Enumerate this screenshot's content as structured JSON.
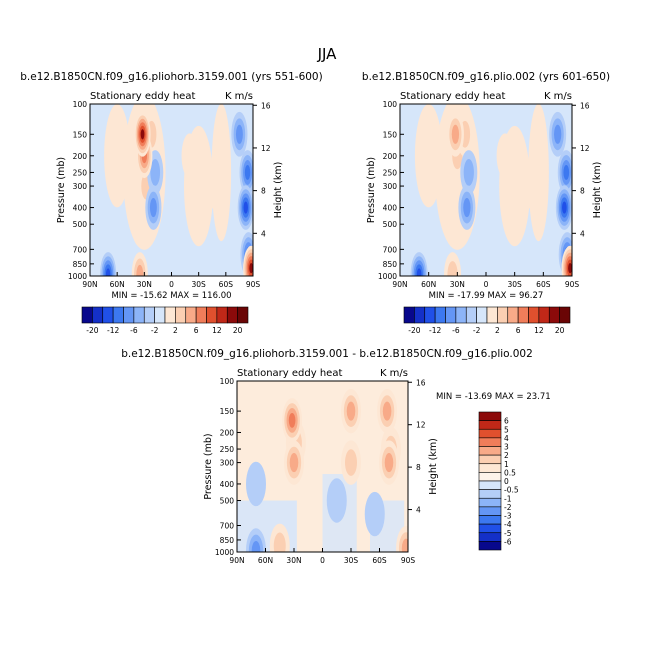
{
  "figure": {
    "title": "JJA"
  },
  "colors": {
    "c_-20": "#08088c",
    "c_-16": "#1430c8",
    "c_-12": "#2050e8",
    "c_-8": "#3c78f0",
    "c_-6": "#6496f5",
    "c_-4": "#8cb4f8",
    "c_-2": "#b4cef8",
    "c_0": "#d6e6fa",
    "c_2": "#fde7d4",
    "c_4": "#fbcfb2",
    "c_6": "#f8aa88",
    "c_8": "#f07d5a",
    "c_12": "#e0502e",
    "c_16": "#c02818",
    "c_20": "#8c0a0a"
  },
  "chart_data": [
    {
      "type": "contour",
      "header": "b.e12.B1850CN.f09_g16.pliohorb.3159.001 (yrs 551-600)",
      "subtitle_left": "Stationary eddy heat",
      "subtitle_right": "K m/s",
      "xlabel": "",
      "ylabel": "Pressure (mb)",
      "ylabel_right": "Height (km)",
      "x_ticks": [
        "90N",
        "60N",
        "30N",
        "0",
        "30S",
        "60S",
        "90S"
      ],
      "y_ticks": [
        "100",
        "150",
        "200",
        "250",
        "300",
        "400",
        "500",
        "700",
        "850",
        "1000"
      ],
      "y_ticks_right": [
        "16",
        "12",
        "8",
        "4"
      ],
      "stats": "MIN = -15.62   MAX = 116.00",
      "features": [
        {
          "lat": 32,
          "p": 150,
          "v": 20
        },
        {
          "lat": 30,
          "p": 200,
          "v": 8
        },
        {
          "lat": 28,
          "p": 300,
          "v": 4
        },
        {
          "lat": 22,
          "p": 150,
          "v": 4
        },
        {
          "lat": 35,
          "p": 500,
          "v": 2
        },
        {
          "lat": 20,
          "p": 400,
          "v": -6
        },
        {
          "lat": 18,
          "p": 250,
          "v": -4
        },
        {
          "lat": -75,
          "p": 150,
          "v": -6
        },
        {
          "lat": -82,
          "p": 400,
          "v": -12
        },
        {
          "lat": -84,
          "p": 250,
          "v": -8
        },
        {
          "lat": -88,
          "p": 900,
          "v": 20
        },
        {
          "lat": -85,
          "p": 750,
          "v": -8
        },
        {
          "lat": 70,
          "p": 980,
          "v": -12
        },
        {
          "lat": 35,
          "p": 980,
          "v": 6
        },
        {
          "lat": -20,
          "p": 200,
          "v": 2
        },
        {
          "lat": -45,
          "p": 300,
          "v": 2
        }
      ]
    },
    {
      "type": "contour",
      "header": "b.e12.B1850CN.f09_g16.plio.002 (yrs 601-650)",
      "subtitle_left": "Stationary eddy heat",
      "subtitle_right": "K m/s",
      "xlabel": "",
      "ylabel": "Pressure (mb)",
      "ylabel_right": "Height (km)",
      "x_ticks": [
        "90N",
        "60N",
        "30N",
        "0",
        "30S",
        "60S",
        "90S"
      ],
      "y_ticks": [
        "100",
        "150",
        "200",
        "250",
        "300",
        "400",
        "500",
        "700",
        "850",
        "1000"
      ],
      "y_ticks_right": [
        "16",
        "12",
        "8",
        "4"
      ],
      "stats": "MIN = -17.99   MAX =  96.27",
      "features": [
        {
          "lat": 32,
          "p": 150,
          "v": 6
        },
        {
          "lat": 30,
          "p": 200,
          "v": 4
        },
        {
          "lat": 22,
          "p": 150,
          "v": 4
        },
        {
          "lat": 20,
          "p": 400,
          "v": -6
        },
        {
          "lat": 18,
          "p": 250,
          "v": -4
        },
        {
          "lat": -75,
          "p": 150,
          "v": -6
        },
        {
          "lat": -82,
          "p": 400,
          "v": -12
        },
        {
          "lat": -84,
          "p": 250,
          "v": -8
        },
        {
          "lat": -88,
          "p": 900,
          "v": 20
        },
        {
          "lat": -85,
          "p": 750,
          "v": -8
        },
        {
          "lat": 70,
          "p": 980,
          "v": -12
        },
        {
          "lat": 35,
          "p": 980,
          "v": 4
        },
        {
          "lat": -20,
          "p": 200,
          "v": 2
        },
        {
          "lat": -45,
          "p": 300,
          "v": 2
        }
      ]
    },
    {
      "type": "contour",
      "header": "b.e12.B1850CN.f09_g16.pliohorb.3159.001 - b.e12.B1850CN.f09_g16.plio.002",
      "subtitle_left": "Stationary eddy heat",
      "subtitle_right": "K m/s",
      "xlabel": "",
      "ylabel": "Pressure (mb)",
      "ylabel_right": "Height (km)",
      "x_ticks": [
        "90N",
        "60N",
        "30N",
        "0",
        "30S",
        "60S",
        "90S"
      ],
      "y_ticks": [
        "100",
        "150",
        "200",
        "250",
        "300",
        "400",
        "500",
        "700",
        "850",
        "1000"
      ],
      "y_ticks_right": [
        "16",
        "12",
        "8",
        "4"
      ],
      "stats": "MIN = -13.69   MAX =  23.71",
      "features": [
        {
          "lat": 32,
          "p": 170,
          "v": 3
        },
        {
          "lat": 30,
          "p": 300,
          "v": 2
        },
        {
          "lat": 28,
          "p": 230,
          "v": 1
        },
        {
          "lat": -30,
          "p": 150,
          "v": 2
        },
        {
          "lat": -30,
          "p": 300,
          "v": 1
        },
        {
          "lat": -68,
          "p": 150,
          "v": 2
        },
        {
          "lat": -70,
          "p": 300,
          "v": 2
        },
        {
          "lat": -72,
          "p": 250,
          "v": 1
        },
        {
          "lat": 70,
          "p": 400,
          "v": -0.5
        },
        {
          "lat": -15,
          "p": 500,
          "v": -0.5
        },
        {
          "lat": -55,
          "p": 600,
          "v": -0.5
        },
        {
          "lat": 70,
          "p": 980,
          "v": -2
        },
        {
          "lat": 45,
          "p": 920,
          "v": 1
        },
        {
          "lat": -88,
          "p": 950,
          "v": 2
        }
      ]
    }
  ],
  "colorbars": [
    {
      "orientation": "horizontal",
      "labels": [
        "-20",
        "-12",
        "-6",
        "-2",
        "2",
        "6",
        "12",
        "20"
      ]
    },
    {
      "orientation": "horizontal",
      "labels": [
        "-20",
        "-12",
        "-6",
        "-2",
        "2",
        "6",
        "12",
        "20"
      ]
    },
    {
      "orientation": "vertical",
      "labels": [
        "6",
        "5",
        "4",
        "3",
        "2",
        "1",
        "0.5",
        "0",
        "-0.5",
        "-1",
        "-2",
        "-3",
        "-4",
        "-5",
        "-6"
      ]
    }
  ]
}
